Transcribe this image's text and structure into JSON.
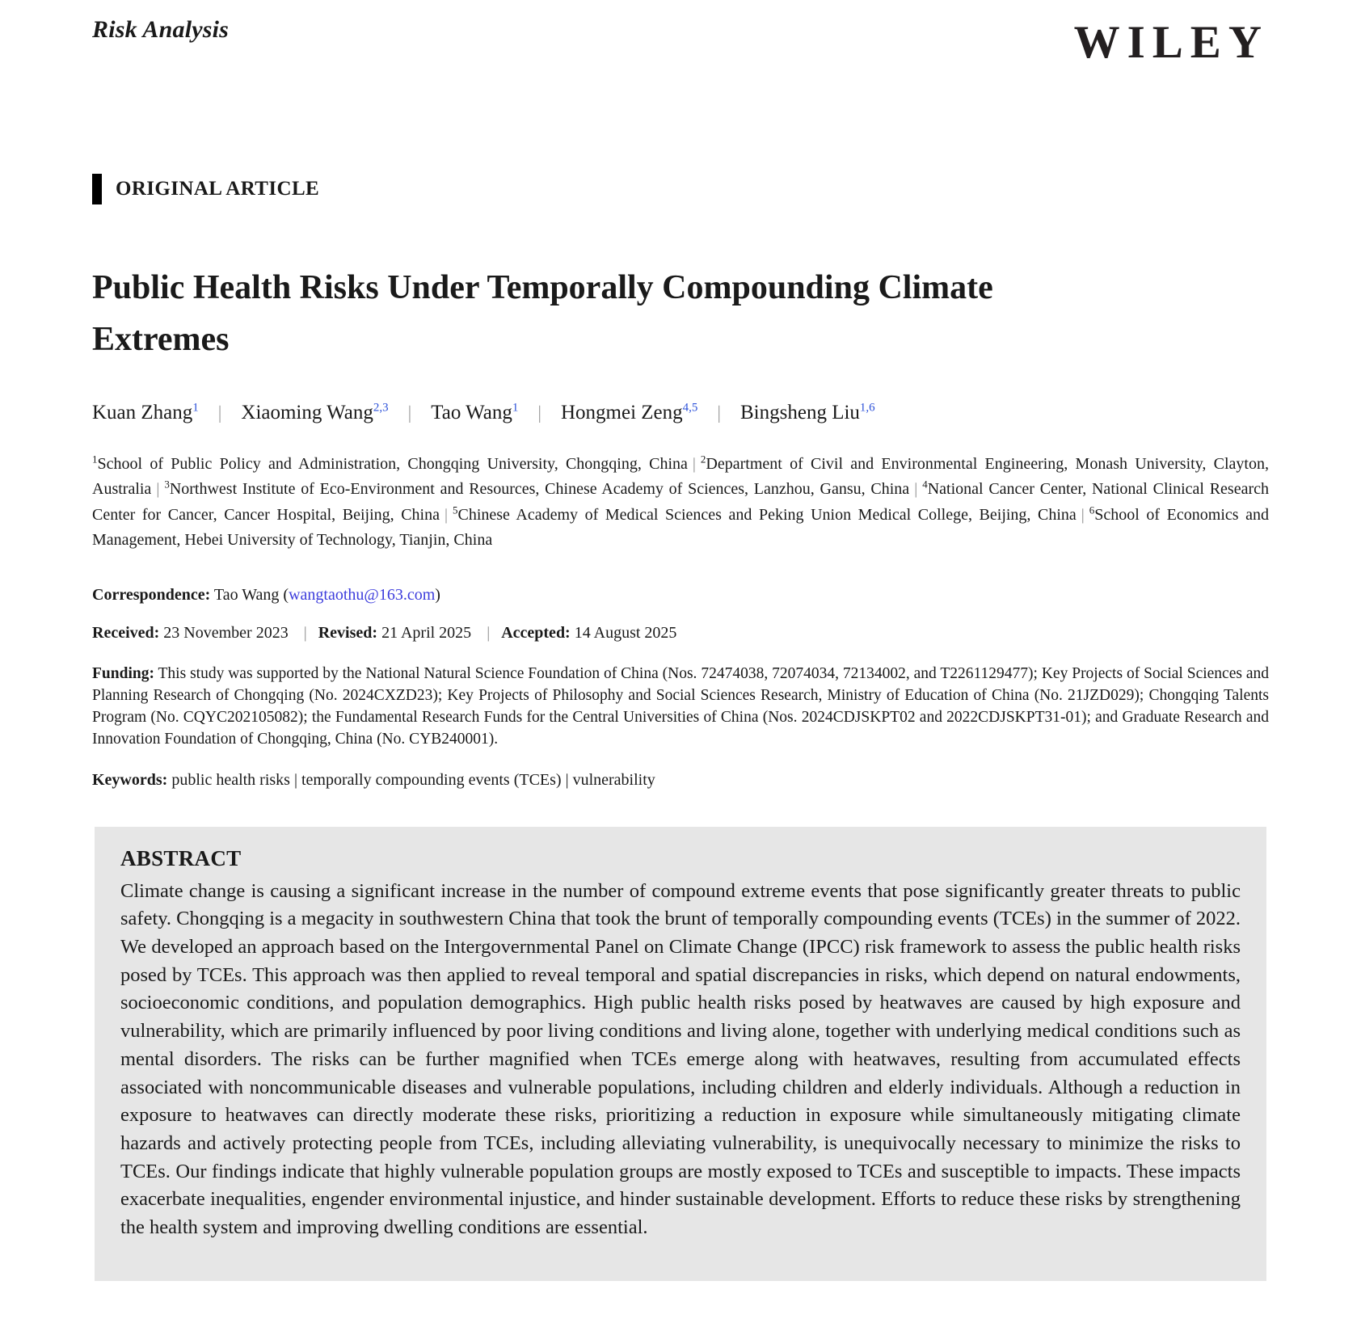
{
  "journal": {
    "name": "Risk Analysis"
  },
  "publisher": {
    "logo": "WILEY"
  },
  "article": {
    "type_label": "ORIGINAL ARTICLE",
    "title": "Public Health Risks Under Temporally Compounding Climate Extremes",
    "authors": [
      {
        "name": "Kuan Zhang",
        "sup": "1"
      },
      {
        "name": "Xiaoming Wang",
        "sup": "2,3"
      },
      {
        "name": "Tao Wang",
        "sup": "1"
      },
      {
        "name": "Hongmei Zeng",
        "sup": "4,5"
      },
      {
        "name": "Bingsheng Liu",
        "sup": "1,6"
      }
    ],
    "affiliations": [
      {
        "sup": "1",
        "text": "School of Public Policy and Administration, Chongqing University, Chongqing, China"
      },
      {
        "sup": "2",
        "text": "Department of Civil and Environmental Engineering, Monash University, Clayton, Australia"
      },
      {
        "sup": "3",
        "text": "Northwest Institute of Eco-Environment and Resources, Chinese Academy of Sciences, Lanzhou, Gansu, China"
      },
      {
        "sup": "4",
        "text": "National Cancer Center, National Clinical Research Center for Cancer, Cancer Hospital, Beijing, China"
      },
      {
        "sup": "5",
        "text": "Chinese Academy of Medical Sciences and Peking Union Medical College, Beijing, China"
      },
      {
        "sup": "6",
        "text": "School of Economics and Management, Hebei University of Technology, Tianjin, China"
      }
    ],
    "correspondence": {
      "label": "Correspondence:",
      "name": "Tao Wang",
      "email_prefix": "(",
      "email": "wangtaothu@163.com",
      "email_suffix": ")"
    },
    "history": [
      {
        "label": "Received:",
        "value": "23 November 2023"
      },
      {
        "label": "Revised:",
        "value": "21 April 2025"
      },
      {
        "label": "Accepted:",
        "value": "14 August 2025"
      }
    ],
    "funding": {
      "label": "Funding:",
      "text": "This study was supported by the National Natural Science Foundation of China (Nos. 72474038, 72074034, 72134002, and T2261129477); Key Projects of Social Sciences and Planning Research of Chongqing (No. 2024CXZD23); Key Projects of Philosophy and Social Sciences Research, Ministry of Education of China (No. 21JZD029); Chongqing Talents Program (No. CQYC202105082); the Fundamental Research Funds for the Central Universities of China (Nos. 2024CDJSKPT02 and 2022CDJSKPT31-01); and Graduate Research and Innovation Foundation of Chongqing, China (No. CYB240001)."
    },
    "keywords": {
      "label": "Keywords:",
      "items": [
        "public health risks",
        "temporally compounding events (TCEs)",
        "vulnerability"
      ]
    },
    "abstract": {
      "heading": "ABSTRACT",
      "text": "Climate change is causing a significant increase in the number of compound extreme events that pose significantly greater threats to public safety. Chongqing is a megacity in southwestern China that took the brunt of temporally compounding events (TCEs) in the summer of 2022. We developed an approach based on the Intergovernmental Panel on Climate Change (IPCC) risk framework to assess the public health risks posed by TCEs. This approach was then applied to reveal temporal and spatial discrepancies in risks, which depend on natural endowments, socioeconomic conditions, and population demographics. High public health risks posed by heatwaves are caused by high exposure and vulnerability, which are primarily influenced by poor living conditions and living alone, together with underlying medical conditions such as mental disorders. The risks can be further magnified when TCEs emerge along with heatwaves, resulting from accumulated effects associated with noncommunicable diseases and vulnerable populations, including children and elderly individuals. Although a reduction in exposure to heatwaves can directly moderate these risks, prioritizing a reduction in exposure while simultaneously mitigating climate hazards and actively protecting people from TCEs, including alleviating vulnerability, is unequivocally necessary to minimize the risks to TCEs. Our findings indicate that highly vulnerable population groups are mostly exposed to TCEs and susceptible to impacts. These impacts exacerbate inequalities, engender environmental injustice, and hinder sustainable development. Efforts to reduce these risks by strengthening the health system and improving dwelling conditions are essential."
    }
  },
  "colors": {
    "text": "#1a1a1a",
    "author_sup_blue": "#2b50d9",
    "email_blue": "#3c3cdc",
    "abstract_background": "#e6e6e6",
    "logo_black": "#231f20",
    "separator_gray": "#8c8c8c"
  }
}
